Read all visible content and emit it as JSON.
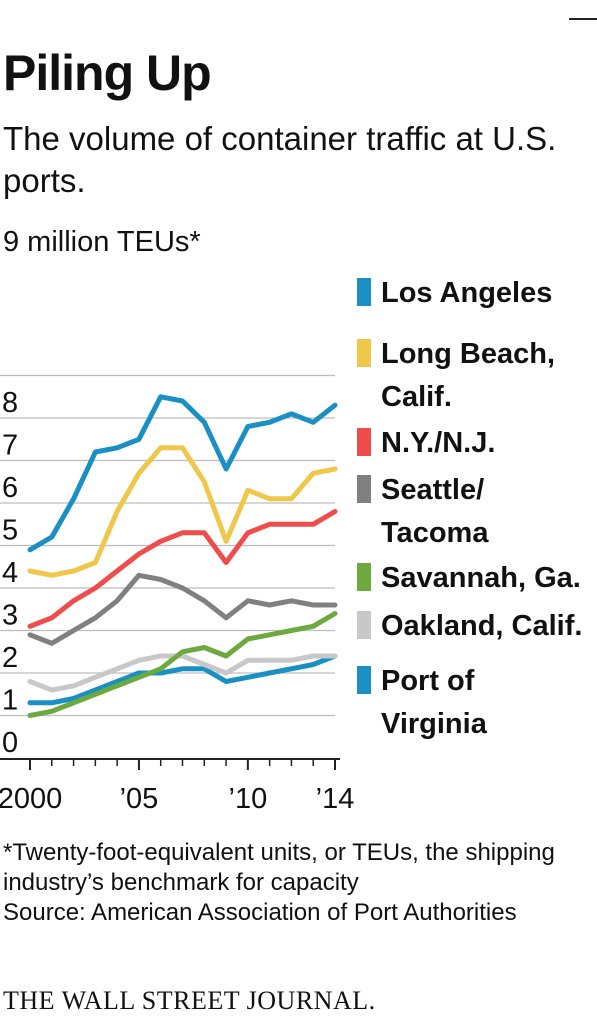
{
  "title": "Piling Up",
  "subtitle": "The volume of container traffic at U.S. ports.",
  "unit_note": "9 million TEUs*",
  "footnote": {
    "line1": "*Twenty-foot-equivalent units, or TEUs, the shipping industry’s benchmark for capacity",
    "source": "Source: American Association of Port Authorities"
  },
  "brand": "THE WALL STREET JOURNAL.",
  "chart_data": {
    "type": "line",
    "x": [
      2000,
      2001,
      2002,
      2003,
      2004,
      2005,
      2006,
      2007,
      2008,
      2009,
      2010,
      2011,
      2012,
      2013,
      2014
    ],
    "x_tick_values": [
      2000,
      2005,
      2010,
      2014
    ],
    "x_tick_labels": [
      "2000",
      "’05",
      "’10",
      "’14"
    ],
    "y_ticks": [
      0,
      1,
      2,
      3,
      4,
      5,
      6,
      7,
      8
    ],
    "y_top_label_value": 9,
    "ylim": [
      0,
      9
    ],
    "xlim": [
      2000,
      2014
    ],
    "grid": true,
    "legend_position": "right",
    "series": [
      {
        "name": "Los Angeles",
        "color": "#1a8fc3",
        "values": [
          4.9,
          5.2,
          6.1,
          7.2,
          7.3,
          7.5,
          8.5,
          8.4,
          7.9,
          6.8,
          7.8,
          7.9,
          8.1,
          7.9,
          8.3
        ]
      },
      {
        "name": "Long Beach, Calif.",
        "color": "#efc74b",
        "values": [
          4.4,
          4.3,
          4.4,
          4.6,
          5.8,
          6.7,
          7.3,
          7.3,
          6.5,
          5.1,
          6.3,
          6.1,
          6.1,
          6.7,
          6.8
        ]
      },
      {
        "name": "N.Y./N.J.",
        "color": "#ef4c4c",
        "values": [
          3.1,
          3.3,
          3.7,
          4.0,
          4.4,
          4.8,
          5.1,
          5.3,
          5.3,
          4.6,
          5.3,
          5.5,
          5.5,
          5.5,
          5.8
        ]
      },
      {
        "name": "Seattle/ Tacoma",
        "color": "#808080",
        "values": [
          2.9,
          2.7,
          3.0,
          3.3,
          3.7,
          4.3,
          4.2,
          4.0,
          3.7,
          3.3,
          3.7,
          3.6,
          3.7,
          3.6,
          3.6
        ]
      },
      {
        "name": "Savannah, Ga.",
        "color": "#6ca93f",
        "values": [
          1.0,
          1.1,
          1.3,
          1.5,
          1.7,
          1.9,
          2.1,
          2.5,
          2.6,
          2.4,
          2.8,
          2.9,
          3.0,
          3.1,
          3.4
        ]
      },
      {
        "name": "Oakland, Calif.",
        "color": "#c8c8c8",
        "values": [
          1.8,
          1.6,
          1.7,
          1.9,
          2.1,
          2.3,
          2.4,
          2.4,
          2.2,
          2.0,
          2.3,
          2.3,
          2.3,
          2.4,
          2.4
        ]
      },
      {
        "name": "Port of Virginia",
        "color": "#1a8fc3",
        "values": [
          1.3,
          1.3,
          1.4,
          1.6,
          1.8,
          2.0,
          2.0,
          2.1,
          2.1,
          1.8,
          1.9,
          2.0,
          2.1,
          2.2,
          2.4
        ]
      }
    ],
    "legend_lines": [
      {
        "series": "Los Angeles",
        "lines": [
          "Los Angeles"
        ]
      },
      {
        "series": "Long Beach, Calif.",
        "lines": [
          "Long Beach,",
          "Calif."
        ]
      },
      {
        "series": "N.Y./N.J.",
        "lines": [
          "N.Y./N.J."
        ]
      },
      {
        "series": "Seattle/ Tacoma",
        "lines": [
          "Seattle/",
          "Tacoma"
        ]
      },
      {
        "series": "Savannah, Ga.",
        "lines": [
          "Savannah, Ga."
        ]
      },
      {
        "series": "Oakland, Calif.",
        "lines": [
          "Oakland, Calif."
        ]
      },
      {
        "series": "Port of Virginia",
        "lines": [
          "Port of",
          "Virginia"
        ]
      }
    ]
  }
}
